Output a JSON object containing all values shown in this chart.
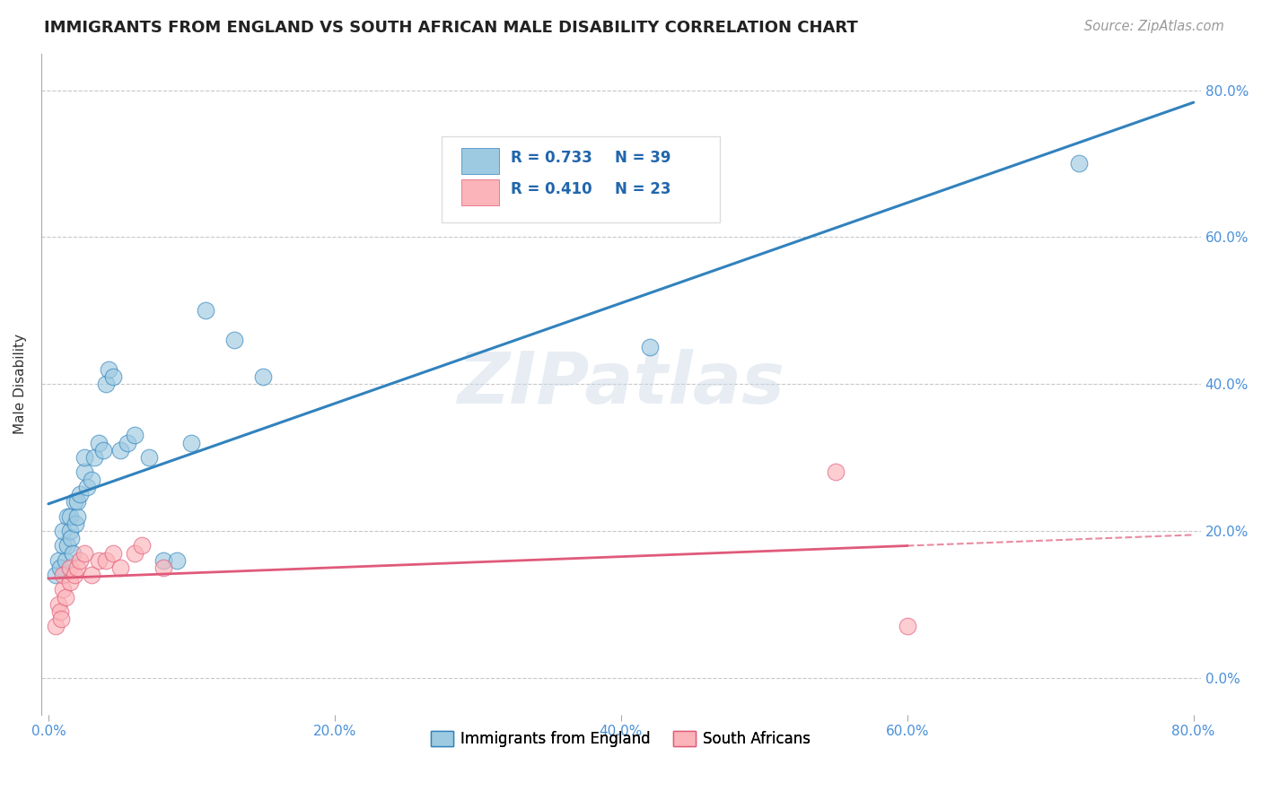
{
  "title": "IMMIGRANTS FROM ENGLAND VS SOUTH AFRICAN MALE DISABILITY CORRELATION CHART",
  "source": "Source: ZipAtlas.com",
  "ylabel": "Male Disability",
  "xlim": [
    0.0,
    0.8
  ],
  "ylim": [
    -0.05,
    0.85
  ],
  "x_ticks": [
    0.0,
    0.2,
    0.4,
    0.6,
    0.8
  ],
  "y_ticks": [
    0.0,
    0.2,
    0.4,
    0.6,
    0.8
  ],
  "legend_labels": [
    "Immigrants from England",
    "South Africans"
  ],
  "R_blue": "R = 0.733",
  "N_blue": "N = 39",
  "R_pink": "R = 0.410",
  "N_pink": "N = 23",
  "blue_color": "#9ecae1",
  "pink_color": "#fbb4b9",
  "blue_line_color": "#3182bd",
  "pink_line_color": "#e05a7a",
  "background_color": "#ffffff",
  "grid_color": "#cccccc",
  "blue_x": [
    0.005,
    0.007,
    0.008,
    0.01,
    0.01,
    0.012,
    0.013,
    0.013,
    0.015,
    0.015,
    0.016,
    0.017,
    0.018,
    0.019,
    0.02,
    0.02,
    0.022,
    0.025,
    0.025,
    0.027,
    0.03,
    0.032,
    0.035,
    0.038,
    0.04,
    0.042,
    0.045,
    0.05,
    0.055,
    0.06,
    0.07,
    0.08,
    0.09,
    0.1,
    0.11,
    0.13,
    0.15,
    0.42,
    0.72
  ],
  "blue_y": [
    0.14,
    0.16,
    0.15,
    0.18,
    0.2,
    0.16,
    0.18,
    0.22,
    0.2,
    0.22,
    0.19,
    0.17,
    0.24,
    0.21,
    0.22,
    0.24,
    0.25,
    0.28,
    0.3,
    0.26,
    0.27,
    0.3,
    0.32,
    0.31,
    0.4,
    0.42,
    0.41,
    0.31,
    0.32,
    0.33,
    0.3,
    0.16,
    0.16,
    0.32,
    0.5,
    0.46,
    0.41,
    0.45,
    0.7
  ],
  "pink_x": [
    0.005,
    0.007,
    0.008,
    0.009,
    0.01,
    0.01,
    0.012,
    0.015,
    0.015,
    0.018,
    0.02,
    0.022,
    0.025,
    0.03,
    0.035,
    0.04,
    0.045,
    0.05,
    0.06,
    0.065,
    0.08,
    0.55,
    0.6
  ],
  "pink_y": [
    0.07,
    0.1,
    0.09,
    0.08,
    0.12,
    0.14,
    0.11,
    0.13,
    0.15,
    0.14,
    0.15,
    0.16,
    0.17,
    0.14,
    0.16,
    0.16,
    0.17,
    0.15,
    0.17,
    0.18,
    0.15,
    0.28,
    0.07
  ]
}
